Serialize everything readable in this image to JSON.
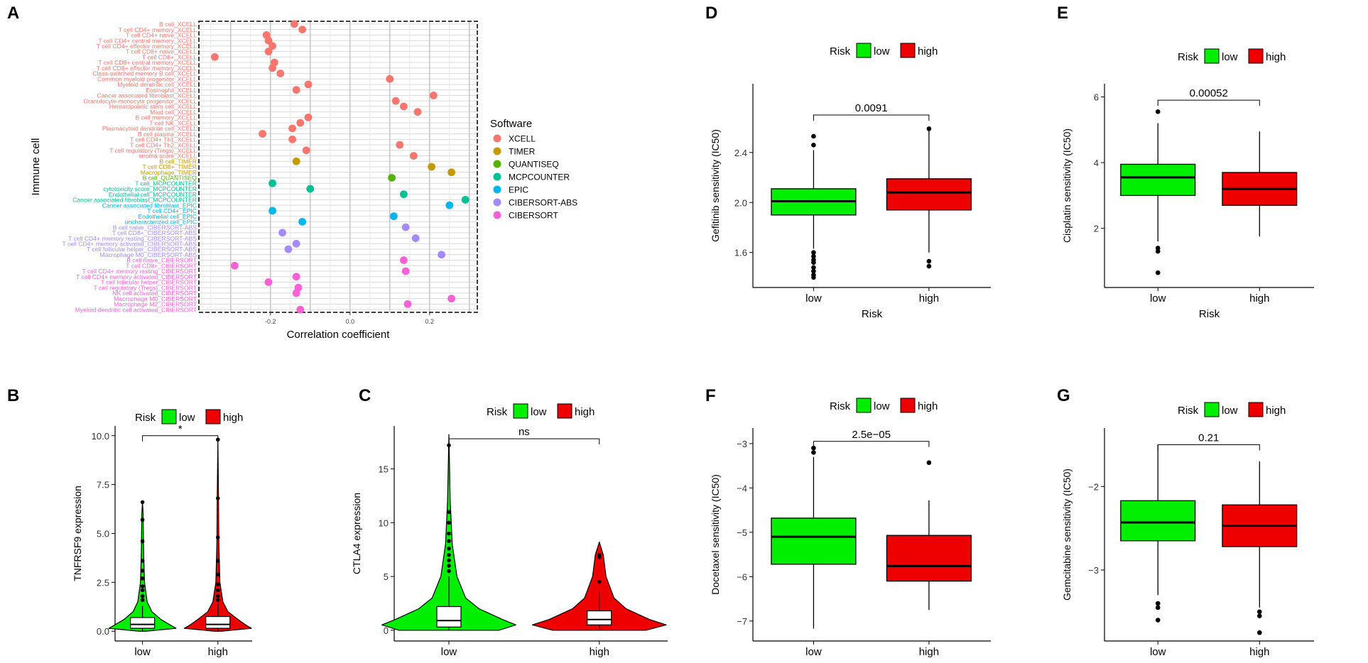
{
  "colors": {
    "low": "#00ee00",
    "high": "#ee0000",
    "software": {
      "XCELL": "#f8766d",
      "TIMER": "#c49a00",
      "QUANTISEQ": "#53b400",
      "MCPCOUNTER": "#00c094",
      "EPIC": "#00b6eb",
      "CIBERSORT-ABS": "#a58aff",
      "CIBERSORT": "#fb61d7"
    }
  },
  "chart_data": [
    {
      "id": "A",
      "type": "scatter",
      "panel_label": "A",
      "xlabel": "Correlation coefficient",
      "ylabel": "Immune cell",
      "xlim": [
        -0.38,
        0.32
      ],
      "xticks": [
        -0.2,
        0.0,
        0.2
      ],
      "xtick_labels": [
        "-0.2",
        "0.0",
        "0.2"
      ],
      "grid": true,
      "legend_title": "Software",
      "legend_position": "right",
      "legend": [
        "XCELL",
        "TIMER",
        "QUANTISEQ",
        "MCPCOUNTER",
        "EPIC",
        "CIBERSORT-ABS",
        "CIBERSORT"
      ],
      "points": [
        {
          "cell": "B cell_XCELL",
          "software": "XCELL",
          "value": -0.14
        },
        {
          "cell": "T cell CD4+ memory_XCELL",
          "software": "XCELL",
          "value": -0.12
        },
        {
          "cell": "T cell CD4+ naive_XCELL",
          "software": "XCELL",
          "value": -0.21
        },
        {
          "cell": "T cell CD4+ central memory_XCELL",
          "software": "XCELL",
          "value": -0.205
        },
        {
          "cell": "T cell CD4+ effector memory_XCELL",
          "software": "XCELL",
          "value": -0.195
        },
        {
          "cell": "T cell CD8+ naive_XCELL",
          "software": "XCELL",
          "value": -0.205
        },
        {
          "cell": "T cell CD8+_XCELL",
          "software": "XCELL",
          "value": -0.34
        },
        {
          "cell": "T cell CD8+ central memory_XCELL",
          "software": "XCELL",
          "value": -0.19
        },
        {
          "cell": "T cell CD8+ effector memory_XCELL",
          "software": "XCELL",
          "value": -0.195
        },
        {
          "cell": "Class-switched memory B cell_XCELL",
          "software": "XCELL",
          "value": -0.175
        },
        {
          "cell": "Common myeloid progenitor_XCELL",
          "software": "XCELL",
          "value": 0.1
        },
        {
          "cell": "Myeloid dendritic cell_XCELL",
          "software": "XCELL",
          "value": -0.105
        },
        {
          "cell": "Eosinophil_XCELL",
          "software": "XCELL",
          "value": -0.135
        },
        {
          "cell": "Cancer associated fibroblast_XCELL",
          "software": "XCELL",
          "value": 0.21
        },
        {
          "cell": "Granulocyte-monocyte progenitor_XCELL",
          "software": "XCELL",
          "value": 0.115
        },
        {
          "cell": "Hematopoietic stem cell_XCELL",
          "software": "XCELL",
          "value": 0.135
        },
        {
          "cell": "Mast cell_XCELL",
          "software": "XCELL",
          "value": 0.17
        },
        {
          "cell": "B cell memory_XCELL",
          "software": "XCELL",
          "value": -0.105
        },
        {
          "cell": "T cell NK_XCELL",
          "software": "XCELL",
          "value": -0.125
        },
        {
          "cell": "Plasmacytoid dendritic cell_XCELL",
          "software": "XCELL",
          "value": -0.145
        },
        {
          "cell": "B cell plasma_XCELL",
          "software": "XCELL",
          "value": -0.22
        },
        {
          "cell": "T cell CD4+ Th1_XCELL",
          "software": "XCELL",
          "value": -0.145
        },
        {
          "cell": "T cell CD4+ Th2_XCELL",
          "software": "XCELL",
          "value": 0.125
        },
        {
          "cell": "T cell regulatory (Tregs)_XCELL",
          "software": "XCELL",
          "value": -0.11
        },
        {
          "cell": "stroma score_XCELL",
          "software": "XCELL",
          "value": 0.16
        },
        {
          "cell": "B cell_TIMER",
          "software": "TIMER",
          "value": -0.135
        },
        {
          "cell": "T cell CD8+_TIMER",
          "software": "TIMER",
          "value": 0.205
        },
        {
          "cell": "Macrophage_TIMER",
          "software": "TIMER",
          "value": 0.255
        },
        {
          "cell": "B cell_QUANTISEQ",
          "software": "QUANTISEQ",
          "value": 0.105
        },
        {
          "cell": "T cell_MCPCOUNTER",
          "software": "MCPCOUNTER",
          "value": -0.195
        },
        {
          "cell": "cytotoxicity score_MCPCOUNTER",
          "software": "MCPCOUNTER",
          "value": -0.1
        },
        {
          "cell": "Endothelial cell_MCPCOUNTER",
          "software": "MCPCOUNTER",
          "value": 0.135
        },
        {
          "cell": "Cancer associated fibroblast_MCPCOUNTER",
          "software": "MCPCOUNTER",
          "value": 0.29
        },
        {
          "cell": "Cancer associated fibroblast_EPIC",
          "software": "EPIC",
          "value": 0.25
        },
        {
          "cell": "T cell CD4+_EPIC",
          "software": "EPIC",
          "value": -0.195
        },
        {
          "cell": "Endothelial cell_EPIC",
          "software": "EPIC",
          "value": 0.11
        },
        {
          "cell": "uncharacterized cell_EPIC",
          "software": "EPIC",
          "value": -0.12
        },
        {
          "cell": "B cell naive_CIBERSORT-ABS",
          "software": "CIBERSORT-ABS",
          "value": 0.14
        },
        {
          "cell": "T cell CD8+_CIBERSORT-ABS",
          "software": "CIBERSORT-ABS",
          "value": -0.17
        },
        {
          "cell": "T cell CD4+ memory resting_CIBERSORT-ABS",
          "software": "CIBERSORT-ABS",
          "value": 0.165
        },
        {
          "cell": "T cell CD4+ memory activated_CIBERSORT-ABS",
          "software": "CIBERSORT-ABS",
          "value": -0.135
        },
        {
          "cell": "T cell follicular helper_CIBERSORT-ABS",
          "software": "CIBERSORT-ABS",
          "value": -0.155
        },
        {
          "cell": "Macrophage M0_CIBERSORT-ABS",
          "software": "CIBERSORT-ABS",
          "value": 0.23
        },
        {
          "cell": "B cell naive_CIBERSORT",
          "software": "CIBERSORT",
          "value": 0.135
        },
        {
          "cell": "T cell CD8+_CIBERSORT",
          "software": "CIBERSORT",
          "value": -0.29
        },
        {
          "cell": "T cell CD4+ memory resting_CIBERSORT",
          "software": "CIBERSORT",
          "value": 0.14
        },
        {
          "cell": "T cell CD4+ memory activated_CIBERSORT",
          "software": "CIBERSORT",
          "value": -0.135
        },
        {
          "cell": "T cell follicular helper_CIBERSORT",
          "software": "CIBERSORT",
          "value": -0.205
        },
        {
          "cell": "T cell regulatory (Tregs)_CIBERSORT",
          "software": "CIBERSORT",
          "value": -0.13
        },
        {
          "cell": "NK cell activated_CIBERSORT",
          "software": "CIBERSORT",
          "value": -0.135
        },
        {
          "cell": "Macrophage M0_CIBERSORT",
          "software": "CIBERSORT",
          "value": 0.255
        },
        {
          "cell": "Macrophage M2_CIBERSORT",
          "software": "CIBERSORT",
          "value": 0.145
        },
        {
          "cell": "Myeloid dendritic cell activated_CIBERSORT",
          "software": "CIBERSORT",
          "value": -0.125
        }
      ]
    },
    {
      "id": "B",
      "type": "violin",
      "panel_label": "B",
      "legend_title": "Risk",
      "legend": [
        "low",
        "high"
      ],
      "xlabel": "Risk",
      "ylabel": "TNFRSF9 expression",
      "categories": [
        "low",
        "high"
      ],
      "ylim": [
        -0.5,
        10.5
      ],
      "yticks": [
        0,
        2.5,
        5,
        7.5,
        10
      ],
      "ytick_labels": [
        "0.0",
        "2.5",
        "5.0",
        "7.5",
        "10.0"
      ],
      "significance": "*",
      "bracket_y": 10.0,
      "boxes": [
        {
          "group": "low",
          "q1": 0.15,
          "median": 0.35,
          "q3": 0.7,
          "whisker_low": 0.0,
          "whisker_high": 1.3,
          "outliers": [
            6.6,
            5.7,
            4.6,
            3.6,
            3.1,
            2.7,
            2.3,
            2.1,
            1.8,
            1.6
          ]
        },
        {
          "group": "high",
          "q1": 0.15,
          "median": 0.35,
          "q3": 0.75,
          "whisker_low": 0.0,
          "whisker_high": 1.4,
          "outliers": [
            9.8,
            6.8,
            4.8,
            3.6,
            2.9,
            2.4,
            2.1,
            1.8,
            1.6
          ]
        }
      ],
      "violin_profile": [
        {
          "group": "low",
          "points": [
            [
              0.0,
              0.1
            ],
            [
              0.15,
              1.0
            ],
            [
              0.3,
              0.85
            ],
            [
              0.6,
              0.55
            ],
            [
              1.0,
              0.28
            ],
            [
              1.5,
              0.14
            ],
            [
              2.5,
              0.06
            ],
            [
              4.0,
              0.035
            ],
            [
              6.0,
              0.02
            ],
            [
              6.6,
              0.0
            ]
          ]
        },
        {
          "group": "high",
          "points": [
            [
              0.0,
              0.1
            ],
            [
              0.15,
              1.0
            ],
            [
              0.3,
              0.85
            ],
            [
              0.6,
              0.6
            ],
            [
              1.0,
              0.3
            ],
            [
              1.5,
              0.15
            ],
            [
              2.5,
              0.06
            ],
            [
              4.5,
              0.03
            ],
            [
              7.0,
              0.018
            ],
            [
              9.8,
              0.0
            ]
          ]
        }
      ]
    },
    {
      "id": "C",
      "type": "violin",
      "panel_label": "C",
      "legend_title": "Risk",
      "legend": [
        "low",
        "high"
      ],
      "xlabel": "Risk",
      "ylabel": "CTLA4 expression",
      "categories": [
        "low",
        "high"
      ],
      "ylim": [
        -1,
        19
      ],
      "yticks": [
        0,
        5,
        10,
        15
      ],
      "ytick_labels": [
        "0",
        "5",
        "10",
        "15"
      ],
      "significance": "ns",
      "bracket_y": 17.8,
      "boxes": [
        {
          "group": "low",
          "q1": 0.3,
          "median": 0.9,
          "q3": 2.2,
          "whisker_low": 0.0,
          "whisker_high": 5.0,
          "outliers": [
            17.2,
            11.0,
            10.0,
            9.0,
            8.3,
            7.6,
            7.0,
            6.5,
            6.0,
            5.5
          ]
        },
        {
          "group": "high",
          "q1": 0.5,
          "median": 1.0,
          "q3": 1.8,
          "whisker_low": 0.0,
          "whisker_high": 3.6,
          "outliers": [
            7.0,
            6.8,
            4.5
          ]
        }
      ],
      "violin_profile": [
        {
          "group": "low",
          "points": [
            [
              0.0,
              0.75
            ],
            [
              0.5,
              1.0
            ],
            [
              1.0,
              0.8
            ],
            [
              2.0,
              0.45
            ],
            [
              3.0,
              0.25
            ],
            [
              5.0,
              0.12
            ],
            [
              8.0,
              0.05
            ],
            [
              12.0,
              0.02
            ],
            [
              18.2,
              0.0
            ]
          ]
        },
        {
          "group": "high",
          "points": [
            [
              0.0,
              0.7
            ],
            [
              0.5,
              1.0
            ],
            [
              1.0,
              0.75
            ],
            [
              2.0,
              0.4
            ],
            [
              3.0,
              0.22
            ],
            [
              5.0,
              0.1
            ],
            [
              7.0,
              0.06
            ],
            [
              8.2,
              0.0
            ]
          ]
        }
      ]
    },
    {
      "id": "D",
      "type": "box",
      "panel_label": "D",
      "legend_title": "Risk",
      "legend": [
        "low",
        "high"
      ],
      "xlabel": "Risk",
      "ylabel": "Gefitinib sensitivity (IC50)",
      "categories": [
        "low",
        "high"
      ],
      "ylim": [
        1.32,
        2.95
      ],
      "yticks": [
        1.6,
        2.0,
        2.4
      ],
      "ytick_labels": [
        "1.6",
        "2.0",
        "2.4"
      ],
      "pvalue": "0.0091",
      "bracket_y": 2.7,
      "boxes": [
        {
          "group": "low",
          "q1": 1.9,
          "median": 2.01,
          "q3": 2.11,
          "whisker_low": 1.63,
          "whisker_high": 2.42,
          "outliers": [
            2.53,
            2.46,
            1.6,
            1.57,
            1.54,
            1.52,
            1.48,
            1.45,
            1.42,
            1.4
          ]
        },
        {
          "group": "high",
          "q1": 1.94,
          "median": 2.08,
          "q3": 2.19,
          "whisker_low": 1.6,
          "whisker_high": 2.58,
          "outliers": [
            2.59,
            1.53,
            1.49
          ]
        }
      ]
    },
    {
      "id": "E",
      "type": "box",
      "panel_label": "E",
      "legend_title": "Risk",
      "legend": [
        "low",
        "high"
      ],
      "xlabel": "Risk",
      "ylabel": "Cisplatin sensitivity (IC50)",
      "categories": [
        "low",
        "high"
      ],
      "ylim": [
        0.2,
        6.4
      ],
      "yticks": [
        2,
        4,
        6
      ],
      "ytick_labels": [
        "2",
        "4",
        "6"
      ],
      "pvalue": "0.00052",
      "bracket_y": 5.9,
      "boxes": [
        {
          "group": "low",
          "q1": 3.0,
          "median": 3.55,
          "q3": 3.95,
          "whisker_low": 1.6,
          "whisker_high": 5.2,
          "outliers": [
            5.55,
            1.4,
            1.3,
            0.65
          ]
        },
        {
          "group": "high",
          "q1": 2.7,
          "median": 3.2,
          "q3": 3.7,
          "whisker_low": 1.75,
          "whisker_high": 4.95,
          "outliers": []
        }
      ]
    },
    {
      "id": "F",
      "type": "box",
      "panel_label": "F",
      "legend_title": "Risk",
      "legend": [
        "low",
        "high"
      ],
      "xlabel": "Risk",
      "ylabel": "Docetaxel sensitivity (IC50)",
      "categories": [
        "low",
        "high"
      ],
      "ylim": [
        -7.45,
        -2.65
      ],
      "yticks": [
        -7,
        -6,
        -5,
        -4,
        -3
      ],
      "ytick_labels": [
        "−7",
        "−6",
        "−5",
        "−4",
        "−3"
      ],
      "pvalue": "2.5e−05",
      "bracket_y": -2.95,
      "boxes": [
        {
          "group": "low",
          "q1": -5.72,
          "median": -5.1,
          "q3": -4.68,
          "whisker_low": -7.17,
          "whisker_high": -3.3,
          "outliers": [
            -3.1,
            -3.2
          ]
        },
        {
          "group": "high",
          "q1": -6.1,
          "median": -5.76,
          "q3": -5.07,
          "whisker_low": -6.75,
          "whisker_high": -4.28,
          "outliers": [
            -3.43
          ]
        }
      ]
    },
    {
      "id": "G",
      "type": "box",
      "panel_label": "G",
      "legend_title": "Risk",
      "legend": [
        "low",
        "high"
      ],
      "xlabel": "Risk",
      "ylabel": "Gemcitabine sensitivity (IC50)",
      "categories": [
        "low",
        "high"
      ],
      "ylim": [
        -3.85,
        -1.3
      ],
      "yticks": [
        -3,
        -2
      ],
      "ytick_labels": [
        "−3",
        "−2"
      ],
      "pvalue": "0.21",
      "bracket_y": -1.5,
      "boxes": [
        {
          "group": "low",
          "q1": -2.65,
          "median": -2.43,
          "q3": -2.17,
          "whisker_low": -3.3,
          "whisker_high": -1.5,
          "outliers": [
            -3.4,
            -3.45,
            -3.6
          ]
        },
        {
          "group": "high",
          "q1": -2.72,
          "median": -2.47,
          "q3": -2.22,
          "whisker_low": -3.45,
          "whisker_high": -1.7,
          "outliers": [
            -3.5,
            -3.55,
            -3.75
          ]
        }
      ]
    }
  ]
}
